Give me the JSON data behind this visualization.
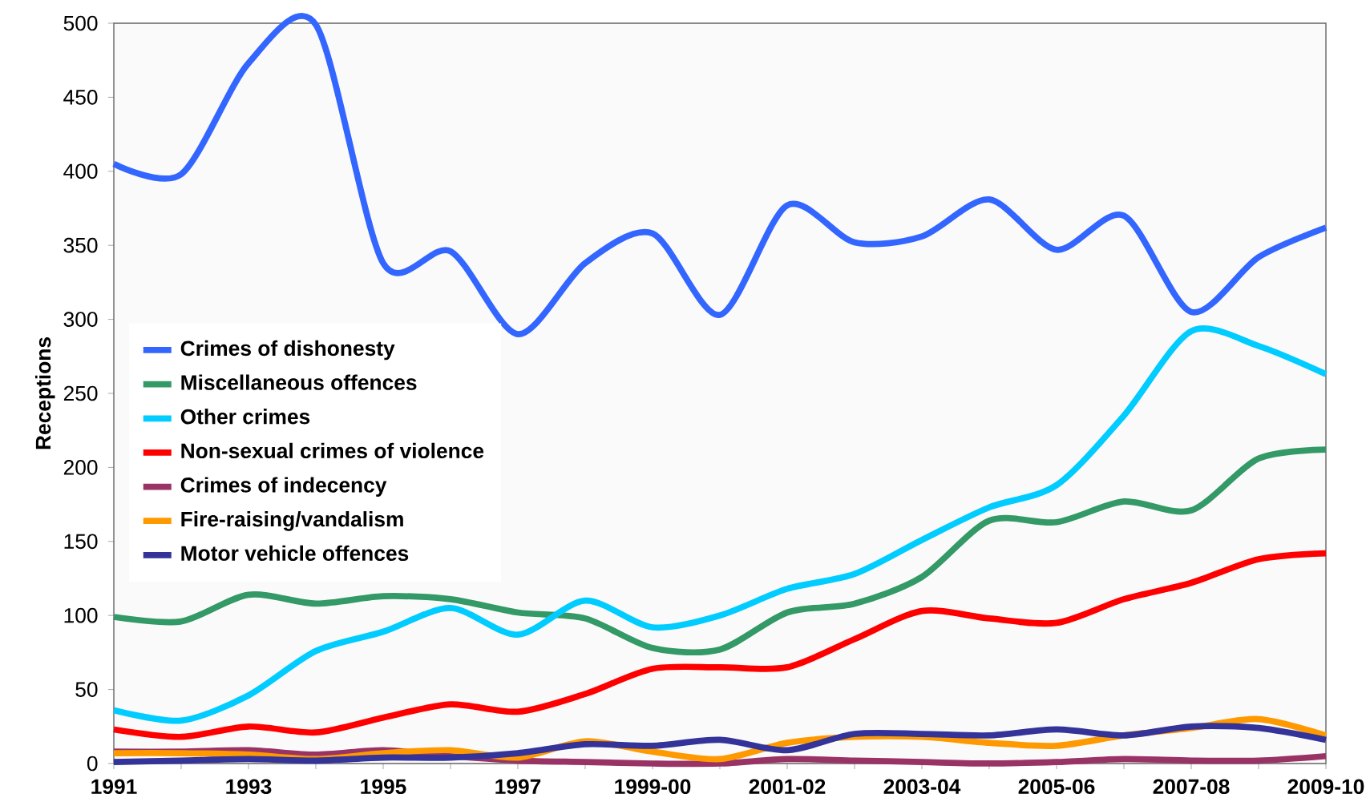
{
  "chart_data": {
    "type": "line",
    "ylabel": "Receptions",
    "categories": [
      "1991",
      null,
      "1993",
      null,
      "1995",
      null,
      "1997",
      null,
      "1999-00",
      null,
      "2001-02",
      null,
      "2003-04",
      null,
      "2005-06",
      null,
      "2007-08",
      null,
      "2009-10"
    ],
    "ylim": [
      0,
      500
    ],
    "yticks": [
      0,
      50,
      100,
      150,
      200,
      250,
      300,
      350,
      400,
      450,
      500
    ],
    "grid": false,
    "legend": "left",
    "marker": "none",
    "line_style": "solid",
    "series": [
      {
        "name": "Crimes of dishonesty",
        "color": "#3366ff",
        "values": [
          405,
          398,
          473,
          499,
          338,
          346,
          290,
          338,
          358,
          303,
          377,
          352,
          356,
          381,
          347,
          370,
          305,
          342,
          362
        ]
      },
      {
        "name": "Miscellaneous offences",
        "color": "#339966",
        "values": [
          99,
          96,
          114,
          108,
          113,
          111,
          102,
          98,
          78,
          77,
          102,
          108,
          126,
          164,
          163,
          177,
          171,
          206,
          212
        ]
      },
      {
        "name": "Other crimes",
        "color": "#00ccff",
        "values": [
          36,
          29,
          46,
          76,
          89,
          105,
          87,
          110,
          92,
          100,
          118,
          128,
          151,
          173,
          188,
          235,
          292,
          282,
          263
        ]
      },
      {
        "name": "Non-sexual crimes of violence",
        "color": "#ff0000",
        "values": [
          23,
          18,
          25,
          21,
          31,
          40,
          35,
          47,
          64,
          65,
          65,
          84,
          103,
          98,
          95,
          111,
          122,
          138,
          142
        ]
      },
      {
        "name": "Crimes of indecency",
        "color": "#993366",
        "values": [
          8,
          8,
          9,
          6,
          9,
          5,
          2,
          1,
          0,
          0,
          3,
          2,
          1,
          0,
          1,
          3,
          2,
          2,
          5
        ]
      },
      {
        "name": "Fire-raising/vandalism",
        "color": "#ff9900",
        "values": [
          7,
          7,
          6,
          3,
          7,
          9,
          4,
          15,
          8,
          3,
          14,
          18,
          18,
          14,
          12,
          19,
          24,
          30,
          19
        ]
      },
      {
        "name": "Motor vehicle offences",
        "color": "#333399",
        "values": [
          1,
          2,
          3,
          2,
          4,
          4,
          7,
          13,
          12,
          16,
          9,
          20,
          20,
          19,
          23,
          19,
          25,
          24,
          16
        ]
      }
    ]
  }
}
